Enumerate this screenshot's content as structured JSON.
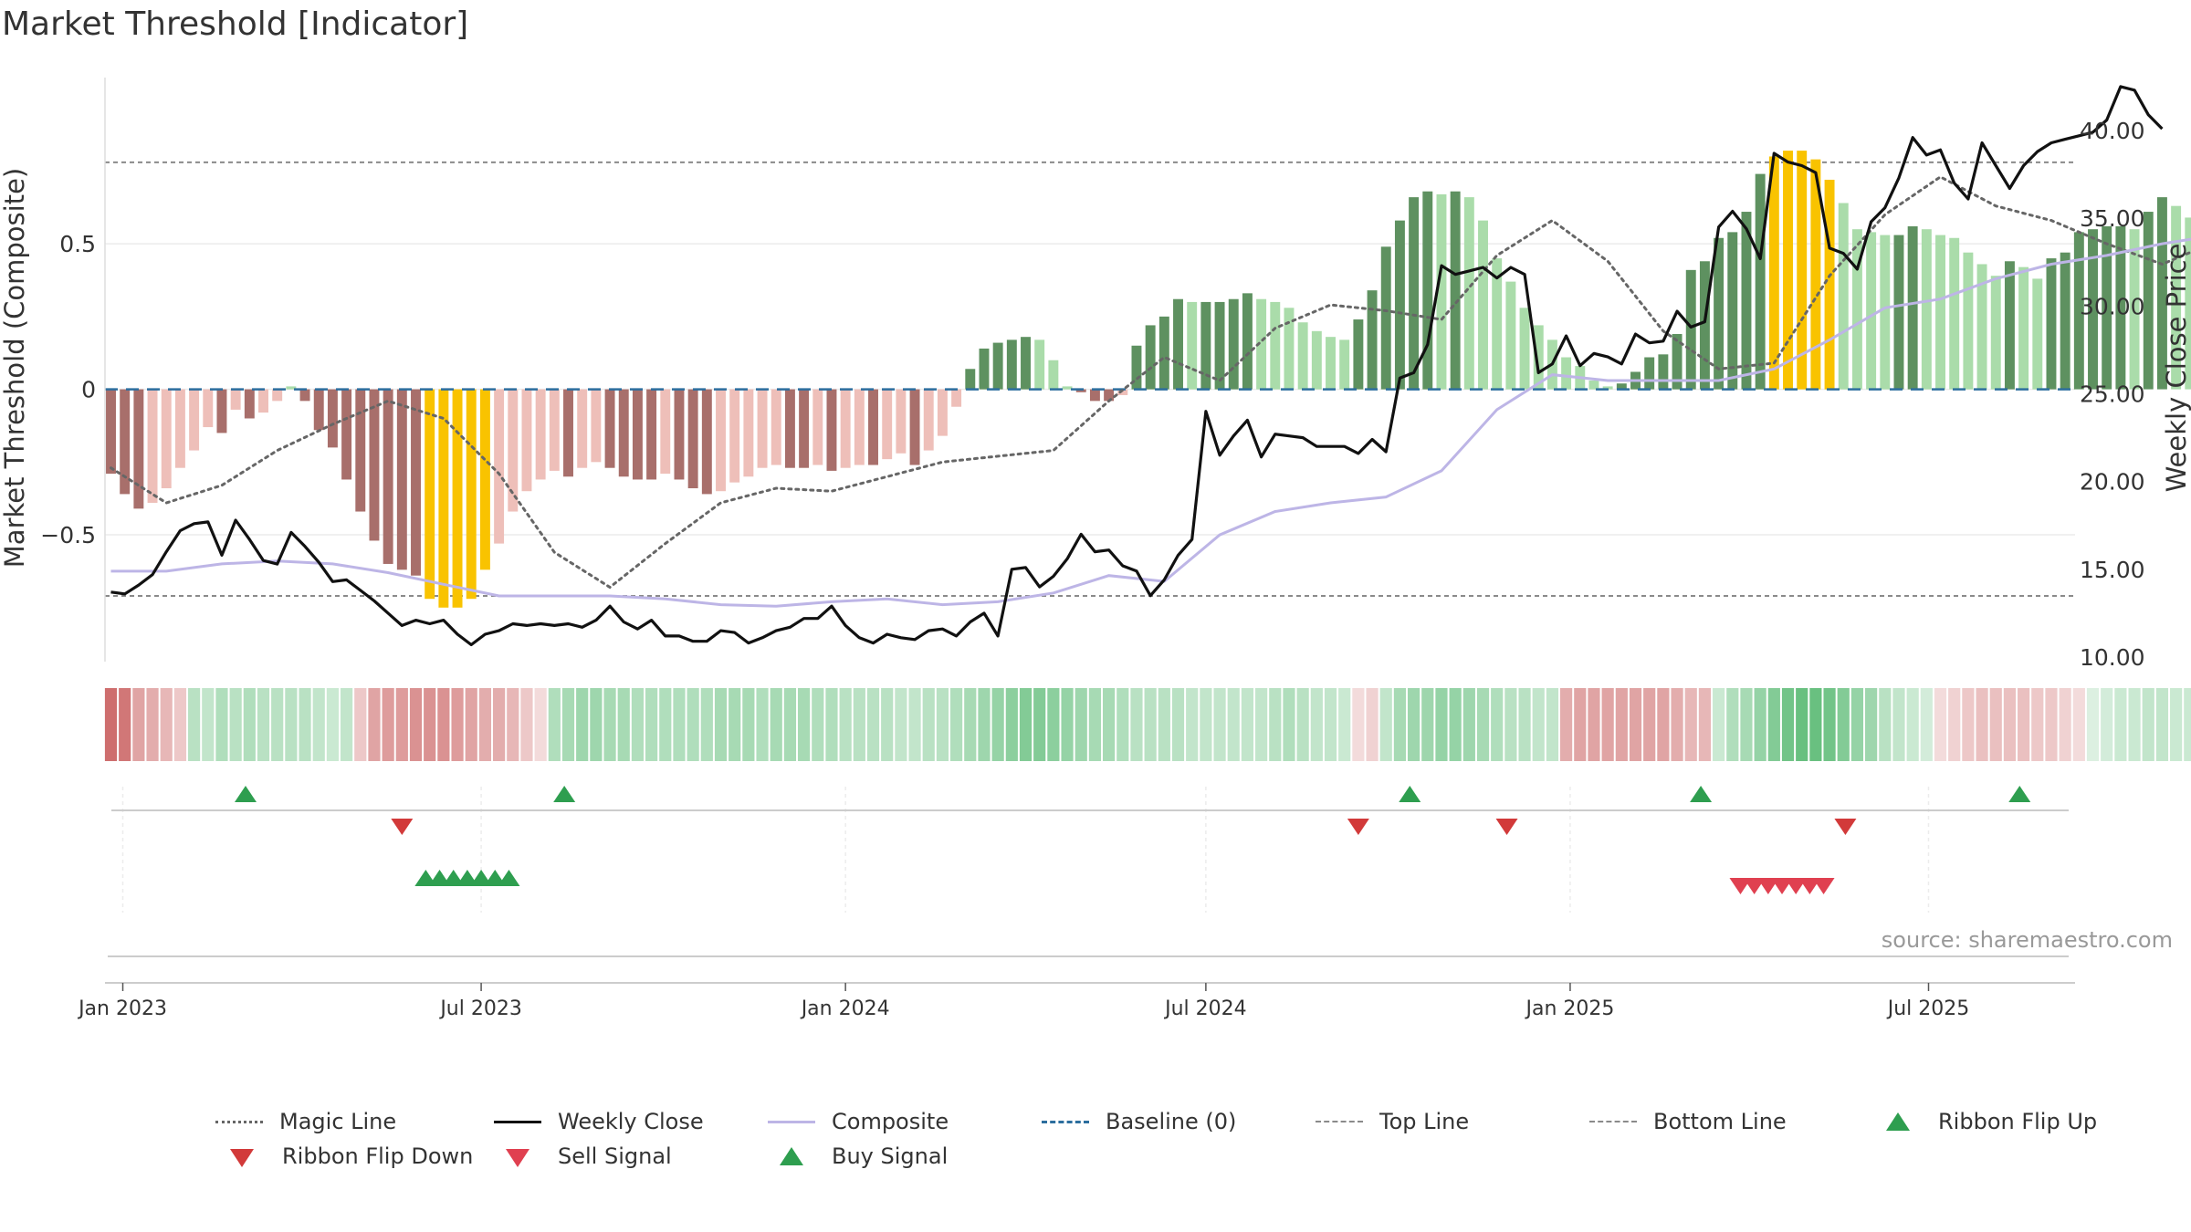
{
  "title": "Market Threshold [Indicator]",
  "source": "source: sharemaestro.com",
  "colors": {
    "magic": "#666666",
    "weekly": "#111111",
    "composite": "#bdb5e6",
    "baseline": "#2c6e9e",
    "topbottom": "#8a8a8a",
    "buy": "#2e9e4f",
    "flip_down": "#d23a3a",
    "sell": "#e04050",
    "highlight": "#f9c300",
    "bar_neg_dark": "#a86f6b",
    "bar_neg_light": "#eebfb9",
    "bar_pos_dark": "#5e9160",
    "bar_pos_light": "#aadcaa",
    "ribbon_pos": "#4fb56a",
    "ribbon_neg": "#c24a4a"
  },
  "legend": [
    {
      "label": "Magic Line",
      "kind": "dotted",
      "color": "#666666"
    },
    {
      "label": "Weekly Close",
      "kind": "solid",
      "color": "#111111"
    },
    {
      "label": "Composite",
      "kind": "solid",
      "color": "#bdb5e6"
    },
    {
      "label": "Baseline (0)",
      "kind": "dashed",
      "color": "#2c6e9e"
    },
    {
      "label": "Top Line",
      "kind": "finedash",
      "color": "#8a8a8a"
    },
    {
      "label": "Bottom Line",
      "kind": "finedash",
      "color": "#8a8a8a"
    },
    {
      "label": "Ribbon Flip Up",
      "kind": "up",
      "color": "#2e9e4f"
    },
    {
      "label": "Ribbon Flip Down",
      "kind": "down",
      "color": "#d23a3a"
    },
    {
      "label": "Sell Signal",
      "kind": "down",
      "color": "#e04050"
    },
    {
      "label": "Buy Signal",
      "kind": "up",
      "color": "#2e9e4f"
    }
  ],
  "chart_data": {
    "type": "bar",
    "xlabel": "",
    "ylabel": "Market Threshold (Composite)",
    "y2label": "Weekly Close Price",
    "ylim": [
      -0.92,
      0.93
    ],
    "y2lim": [
      10.0,
      43.0
    ],
    "yticks": [
      -0.5,
      0,
      0.5
    ],
    "ytick_labels": [
      "−0.5",
      "0",
      "0.5"
    ],
    "y2ticks": [
      10,
      15,
      20,
      25,
      30,
      35,
      40
    ],
    "y2tick_labels": [
      "10.00",
      "15.00",
      "20.00",
      "25.00",
      "30.00",
      "35.00",
      "40.00"
    ],
    "x_start": "2022-12-23",
    "x_end": "2025-09-13",
    "xtick_dates": [
      "2023-01-01",
      "2023-07-01",
      "2024-01-01",
      "2024-07-01",
      "2025-01-01",
      "2025-07-01"
    ],
    "xtick_labels": [
      "Jan 2023",
      "Jul 2023",
      "Jan 2024",
      "Jul 2024",
      "Jan 2025",
      "Jul 2025"
    ],
    "top_line": 0.78,
    "bottom_line": -0.71,
    "bars": {
      "start": "2022-12-26",
      "values": [
        -0.29,
        -0.36,
        -0.41,
        -0.39,
        -0.34,
        -0.27,
        -0.21,
        -0.13,
        -0.15,
        -0.07,
        -0.1,
        -0.08,
        -0.04,
        0.01,
        -0.04,
        -0.14,
        -0.2,
        -0.31,
        -0.42,
        -0.52,
        -0.6,
        -0.62,
        -0.64,
        -0.72,
        -0.75,
        -0.75,
        -0.72,
        -0.62,
        -0.53,
        -0.42,
        -0.35,
        -0.31,
        -0.28,
        -0.3,
        -0.27,
        -0.25,
        -0.27,
        -0.3,
        -0.31,
        -0.31,
        -0.29,
        -0.31,
        -0.34,
        -0.36,
        -0.35,
        -0.32,
        -0.3,
        -0.27,
        -0.26,
        -0.27,
        -0.27,
        -0.26,
        -0.28,
        -0.27,
        -0.26,
        -0.26,
        -0.24,
        -0.22,
        -0.26,
        -0.21,
        -0.16,
        -0.06,
        0.07,
        0.14,
        0.16,
        0.17,
        0.18,
        0.17,
        0.1,
        0.01,
        -0.01,
        -0.04,
        -0.04,
        -0.02,
        0.15,
        0.22,
        0.25,
        0.31,
        0.3,
        0.3,
        0.3,
        0.31,
        0.33,
        0.31,
        0.3,
        0.28,
        0.23,
        0.2,
        0.18,
        0.17,
        0.24,
        0.34,
        0.49,
        0.58,
        0.66,
        0.68,
        0.67,
        0.68,
        0.66,
        0.58,
        0.45,
        0.37,
        0.28,
        0.22,
        0.17,
        0.11,
        0.08,
        0.03,
        0.01,
        0.02,
        0.06,
        0.11,
        0.12,
        0.19,
        0.41,
        0.44,
        0.52,
        0.54,
        0.61,
        0.74,
        0.8,
        0.82,
        0.82,
        0.79,
        0.72,
        0.64,
        0.55,
        0.54,
        0.53,
        0.53,
        0.56,
        0.55,
        0.53,
        0.52,
        0.47,
        0.43,
        0.39,
        0.44,
        0.42,
        0.38,
        0.45,
        0.47,
        0.54,
        0.55,
        0.56,
        0.56,
        0.55,
        0.61,
        0.66,
        0.63,
        0.59
      ],
      "highlight_ranges": [
        [
          23,
          27
        ],
        [
          120,
          124
        ]
      ]
    },
    "series": [
      {
        "name": "Weekly Close",
        "axis": "y2",
        "start": "2022-12-26",
        "values": [
          13.7,
          13.6,
          14.1,
          14.7,
          16.0,
          17.2,
          17.6,
          17.7,
          15.8,
          17.8,
          16.7,
          15.5,
          15.3,
          17.1,
          16.3,
          15.4,
          14.3,
          14.4,
          13.8,
          13.2,
          12.5,
          11.8,
          12.1,
          11.9,
          12.1,
          11.3,
          10.7,
          11.3,
          11.5,
          11.9,
          11.8,
          11.9,
          11.8,
          11.9,
          11.7,
          12.1,
          12.9,
          12.0,
          11.6,
          12.1,
          11.2,
          11.2,
          10.9,
          10.9,
          11.5,
          11.4,
          10.8,
          11.1,
          11.5,
          11.7,
          12.2,
          12.2,
          12.9,
          11.8,
          11.1,
          10.8,
          11.3,
          11.1,
          11.0,
          11.5,
          11.6,
          11.2,
          12.0,
          12.5,
          11.2,
          15.0,
          15.1,
          14.0,
          14.6,
          15.6,
          17.0,
          16.0,
          16.1,
          15.2,
          14.9,
          13.5,
          14.4,
          15.8,
          16.7,
          24.0,
          21.5,
          22.6,
          23.5,
          21.4,
          22.7,
          22.6,
          22.5,
          22.0,
          22.0,
          22.0,
          21.6,
          22.4,
          21.7,
          25.9,
          26.2,
          27.8,
          32.3,
          31.8,
          32.0,
          32.2,
          31.6,
          32.2,
          31.8,
          26.2,
          26.7,
          28.3,
          26.6,
          27.3,
          27.1,
          26.7,
          28.4,
          27.9,
          28.0,
          29.7,
          28.8,
          29.1,
          34.5,
          35.4,
          34.4,
          32.7,
          38.7,
          38.2,
          38.0,
          37.6,
          33.3,
          33.0,
          32.1,
          34.8,
          35.6,
          37.3,
          39.6,
          38.6,
          38.9,
          37.0,
          36.1,
          39.3,
          38.0,
          36.7,
          38.0,
          38.8,
          39.3,
          39.5,
          39.7,
          39.9,
          40.6,
          42.5,
          42.3,
          40.9,
          40.1
        ]
      },
      {
        "name": "Composite",
        "axis": "y",
        "start": "2022-12-26",
        "interval_weeks": 4,
        "values": [
          -0.625,
          -0.625,
          -0.6,
          -0.59,
          -0.6,
          -0.63,
          -0.67,
          -0.71,
          -0.71,
          -0.71,
          -0.72,
          -0.74,
          -0.745,
          -0.73,
          -0.72,
          -0.74,
          -0.73,
          -0.7,
          -0.64,
          -0.66,
          -0.5,
          -0.42,
          -0.39,
          -0.37,
          -0.28,
          -0.07,
          0.05,
          0.03,
          0.03,
          0.03,
          0.07,
          0.17,
          0.28,
          0.31,
          0.38,
          0.43,
          0.46,
          0.5,
          0.53
        ]
      },
      {
        "name": "Magic Line",
        "axis": "y",
        "start": "2022-12-26",
        "interval_weeks": 4,
        "values": [
          -0.27,
          -0.39,
          -0.33,
          -0.21,
          -0.12,
          -0.04,
          -0.1,
          -0.29,
          -0.56,
          -0.68,
          -0.53,
          -0.39,
          -0.34,
          -0.35,
          -0.3,
          -0.25,
          -0.23,
          -0.21,
          -0.04,
          0.11,
          0.03,
          0.21,
          0.29,
          0.27,
          0.24,
          0.46,
          0.58,
          0.44,
          0.2,
          0.07,
          0.09,
          0.39,
          0.6,
          0.73,
          0.63,
          0.58,
          0.5,
          0.43,
          0.51,
          0.6
        ]
      }
    ],
    "ribbon": {
      "start": "2022-12-26",
      "values": [
        -0.8,
        -0.75,
        -0.5,
        -0.45,
        -0.4,
        -0.3,
        0.4,
        0.35,
        0.45,
        0.4,
        0.45,
        0.4,
        0.4,
        0.4,
        0.4,
        0.35,
        0.3,
        0.35,
        -0.3,
        -0.5,
        -0.55,
        -0.55,
        -0.6,
        -0.6,
        -0.6,
        -0.55,
        -0.5,
        -0.45,
        -0.45,
        -0.4,
        -0.3,
        -0.2,
        0.45,
        0.5,
        0.55,
        0.55,
        0.5,
        0.5,
        0.45,
        0.45,
        0.45,
        0.45,
        0.45,
        0.45,
        0.5,
        0.5,
        0.5,
        0.45,
        0.5,
        0.5,
        0.5,
        0.45,
        0.45,
        0.4,
        0.4,
        0.4,
        0.4,
        0.35,
        0.35,
        0.4,
        0.4,
        0.45,
        0.5,
        0.55,
        0.6,
        0.65,
        0.7,
        0.7,
        0.65,
        0.6,
        0.55,
        0.5,
        0.5,
        0.45,
        0.4,
        0.4,
        0.4,
        0.4,
        0.35,
        0.35,
        0.35,
        0.35,
        0.35,
        0.35,
        0.4,
        0.45,
        0.4,
        0.35,
        0.35,
        0.3,
        -0.2,
        -0.25,
        0.35,
        0.5,
        0.55,
        0.55,
        0.6,
        0.6,
        0.55,
        0.5,
        0.45,
        0.4,
        0.4,
        0.35,
        0.35,
        -0.45,
        -0.5,
        -0.5,
        -0.5,
        -0.5,
        -0.5,
        -0.5,
        -0.5,
        -0.45,
        -0.4,
        -0.4,
        0.3,
        0.45,
        0.5,
        0.6,
        0.7,
        0.8,
        0.85,
        0.85,
        0.8,
        0.7,
        0.6,
        0.55,
        0.4,
        0.35,
        0.3,
        0.25,
        -0.2,
        -0.25,
        -0.3,
        -0.35,
        -0.35,
        -0.35,
        -0.35,
        -0.3,
        -0.3,
        -0.25,
        -0.2,
        0.2,
        0.25,
        0.3,
        0.3,
        0.35,
        0.35,
        0.3,
        0.3
      ]
    },
    "ribbon_flip_up": [
      "2023-03-04",
      "2023-08-12",
      "2024-10-12",
      "2025-03-08",
      "2025-08-16"
    ],
    "ribbon_flip_down": [
      "2023-05-22",
      "2024-09-16",
      "2024-11-30",
      "2025-05-20"
    ],
    "buy_signals": [
      "2023-06-03",
      "2023-06-10",
      "2023-06-17",
      "2023-06-24",
      "2023-07-01",
      "2023-07-08",
      "2023-07-15"
    ],
    "sell_signals": [
      "2025-03-28",
      "2025-04-04",
      "2025-04-11",
      "2025-04-18",
      "2025-04-25",
      "2025-05-02",
      "2025-05-09"
    ]
  }
}
